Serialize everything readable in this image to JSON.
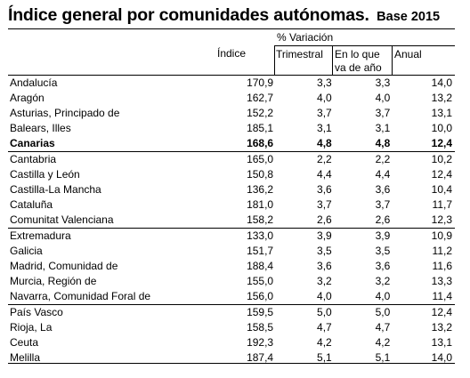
{
  "title": "Índice general por comunidades autónomas.",
  "base": "Base 2015",
  "headers": {
    "indice": "Índice",
    "variacion": "% Variación",
    "trimestral": "Trimestral",
    "en_lo_que_1": "En lo que",
    "en_lo_que_2": "va de año",
    "anual": "Anual"
  },
  "rows": [
    {
      "name": "Andalucía",
      "indice": "170,9",
      "trimestral": "3,3",
      "anio": "3,3",
      "anual": "14,0"
    },
    {
      "name": "Aragón",
      "indice": "162,7",
      "trimestral": "4,0",
      "anio": "4,0",
      "anual": "13,2"
    },
    {
      "name": "Asturias, Principado de",
      "indice": "152,2",
      "trimestral": "3,7",
      "anio": "3,7",
      "anual": "13,1"
    },
    {
      "name": "Balears, Illes",
      "indice": "185,1",
      "trimestral": "3,1",
      "anio": "3,1",
      "anual": "10,0"
    },
    {
      "name": "Canarias",
      "indice": "168,6",
      "trimestral": "4,8",
      "anio": "4,8",
      "anual": "12,4"
    },
    {
      "name": "Cantabria",
      "indice": "165,0",
      "trimestral": "2,2",
      "anio": "2,2",
      "anual": "10,2"
    },
    {
      "name": "Castilla y León",
      "indice": "150,8",
      "trimestral": "4,4",
      "anio": "4,4",
      "anual": "12,4"
    },
    {
      "name": "Castilla-La Mancha",
      "indice": "136,2",
      "trimestral": "3,6",
      "anio": "3,6",
      "anual": "10,4"
    },
    {
      "name": "Cataluña",
      "indice": "181,0",
      "trimestral": "3,7",
      "anio": "3,7",
      "anual": "11,7"
    },
    {
      "name": "Comunitat Valenciana",
      "indice": "158,2",
      "trimestral": "2,6",
      "anio": "2,6",
      "anual": "12,3"
    },
    {
      "name": "Extremadura",
      "indice": "133,0",
      "trimestral": "3,9",
      "anio": "3,9",
      "anual": "10,9"
    },
    {
      "name": "Galicia",
      "indice": "151,7",
      "trimestral": "3,5",
      "anio": "3,5",
      "anual": "11,2"
    },
    {
      "name": "Madrid, Comunidad de",
      "indice": "188,4",
      "trimestral": "3,6",
      "anio": "3,6",
      "anual": "11,6"
    },
    {
      "name": "Murcia, Región de",
      "indice": "155,0",
      "trimestral": "3,2",
      "anio": "3,2",
      "anual": "13,3"
    },
    {
      "name": "Navarra, Comunidad Foral de",
      "indice": "156,0",
      "trimestral": "4,0",
      "anio": "4,0",
      "anual": "11,4"
    },
    {
      "name": "País Vasco",
      "indice": "159,5",
      "trimestral": "5,0",
      "anio": "5,0",
      "anual": "12,4"
    },
    {
      "name": "Rioja, La",
      "indice": "158,5",
      "trimestral": "4,7",
      "anio": "4,7",
      "anual": "13,2"
    },
    {
      "name": "Ceuta",
      "indice": "192,3",
      "trimestral": "4,2",
      "anio": "4,2",
      "anual": "13,1"
    },
    {
      "name": "Melilla",
      "indice": "187,4",
      "trimestral": "5,1",
      "anio": "5,1",
      "anual": "14,0"
    }
  ]
}
